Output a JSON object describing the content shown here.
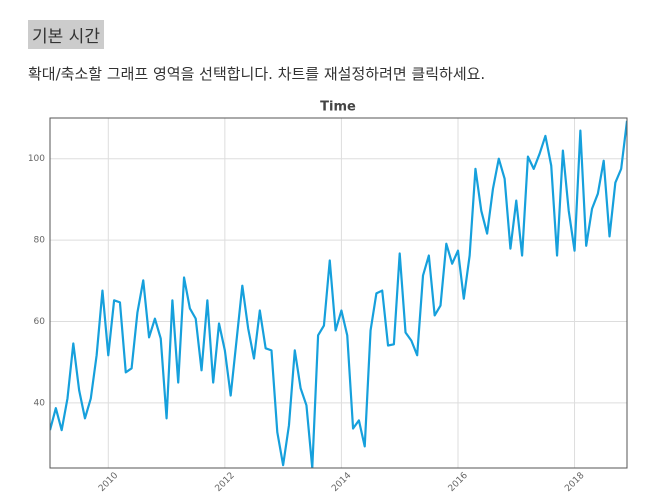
{
  "heading": "기본 시간",
  "instruction": "확대/축소할 그래프 영역을 선택합니다. 차트를 재설정하려면 클릭하세요.",
  "chart_data": {
    "type": "line",
    "title": "Time",
    "color": "#16a0dc",
    "grid": true,
    "x": [
      2009,
      2009.1,
      2009.2,
      2009.3,
      2009.4,
      2009.5,
      2009.6,
      2009.7,
      2009.8,
      2009.9,
      2010,
      2010.1,
      2010.2,
      2010.3,
      2010.4,
      2010.5,
      2010.6,
      2010.7,
      2010.8,
      2010.9,
      2011,
      2011.1,
      2011.2,
      2011.3,
      2011.4,
      2011.5,
      2011.6,
      2011.7,
      2011.8,
      2011.9,
      2012,
      2012.1,
      2012.2,
      2012.3,
      2012.4,
      2012.5,
      2012.6,
      2012.7,
      2012.8,
      2012.9,
      2013,
      2013.1,
      2013.2,
      2013.3,
      2013.4,
      2013.5,
      2013.6,
      2013.7,
      2013.8,
      2013.9,
      2014,
      2014.1,
      2014.2,
      2014.3,
      2014.4,
      2014.5,
      2014.6,
      2014.7,
      2014.8,
      2014.9,
      2015,
      2015.1,
      2015.2,
      2015.3,
      2015.4,
      2015.5,
      2015.6,
      2015.7,
      2015.8,
      2015.9,
      2016,
      2016.1,
      2016.2,
      2016.3,
      2016.4,
      2016.5,
      2016.6,
      2016.7,
      2016.8,
      2016.9,
      2017,
      2017.1,
      2017.2,
      2017.3,
      2017.4,
      2017.5,
      2017.6,
      2017.7,
      2017.8,
      2017.9,
      2018,
      2018.1,
      2018.2,
      2018.3,
      2018.4,
      2018.5,
      2018.6,
      2018.7,
      2018.8,
      2018.9
    ],
    "values": [
      33.3,
      38.7,
      33.3,
      41.1,
      54.6,
      43.1,
      36.2,
      41.1,
      51.7,
      67.6,
      51.7,
      65.2,
      64.7,
      47.5,
      48.5,
      62.2,
      70.1,
      56.1,
      60.7,
      55.8,
      36.2,
      65.2,
      45.0,
      70.8,
      63.2,
      60.7,
      48.0,
      65.2,
      45.0,
      59.5,
      52.9,
      41.8,
      55.3,
      68.8,
      58.3,
      50.9,
      62.7,
      53.4,
      52.9,
      32.8,
      24.7,
      34.5,
      52.9,
      43.6,
      39.4,
      24,
      56.6,
      59.0,
      75.0,
      57.8,
      62.7,
      56.6,
      33.7,
      35.7,
      29.3,
      57.8,
      66.9,
      67.6,
      54.1,
      54.4,
      76.7,
      57.3,
      55.3,
      51.7,
      71.3,
      76.2,
      61.5,
      63.9,
      79.1,
      74.2,
      77.4,
      65.6,
      76.2,
      97.5,
      87.2,
      81.6,
      92.6,
      100,
      95.1,
      77.9,
      89.7,
      76.2,
      100.5,
      97.5,
      101.2,
      105.6,
      98.3,
      76.2,
      102.0,
      87.2,
      77.4,
      106.9,
      78.6,
      87.7,
      91.4,
      99.5,
      80.9,
      94.1,
      97.5,
      109.3
    ],
    "xlim": [
      2009,
      2018.9
    ],
    "xticks": [
      2010,
      2012,
      2014,
      2016,
      2018
    ],
    "ylim": [
      24,
      110
    ],
    "yticks": [
      40,
      60,
      80,
      100
    ]
  }
}
